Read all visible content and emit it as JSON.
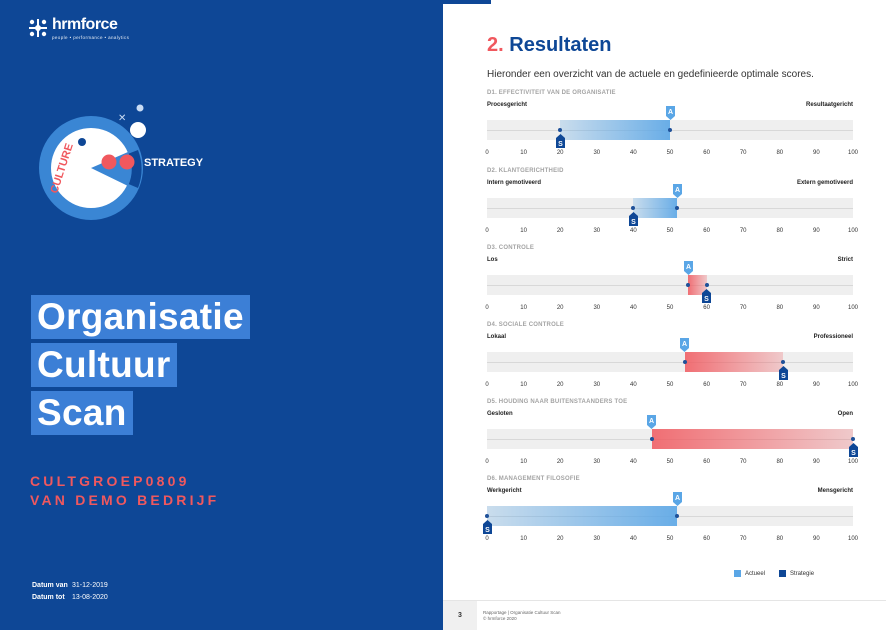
{
  "cover": {
    "brand": "hrmforce",
    "tagline": "people • performance • analytics",
    "emblem_word_left": "CULTURE",
    "emblem_word_right": "STRATEGY",
    "title_lines": [
      "Organisatie",
      "Cultuur",
      "Scan"
    ],
    "subtitle_lines": [
      "CULTGROEP0809",
      "VAN DEMO BEDRIJF"
    ],
    "date_from_label": "Datum van",
    "date_from": "31-12-2019",
    "date_to_label": "Datum tot",
    "date_to": "13-08-2020",
    "colors": {
      "background": "#0e4796",
      "title_box": "#3c7fd6",
      "accent": "#f0585e"
    }
  },
  "report": {
    "section_number": "2.",
    "section_title": "Resultaten",
    "intro": "Hieronder een overzicht van de actuele en gedefinieerde optimale scores.",
    "marker_actual": "A",
    "marker_strategy": "S",
    "ticks": [
      "0",
      "10",
      "20",
      "30",
      "40",
      "50",
      "60",
      "70",
      "80",
      "90",
      "100"
    ],
    "dimensions": [
      {
        "title": "D1. EFFECTIVITEIT VAN DE ORGANISATIE",
        "left_label": "Procesgericht",
        "right_label": "Resultaatgericht",
        "actual": 50,
        "strategy": 20,
        "color": "blue"
      },
      {
        "title": "D2. KLANTGERICHTHEID",
        "left_label": "Intern gemotiveerd",
        "right_label": "Extern gemotiveerd",
        "actual": 52,
        "strategy": 40,
        "color": "blue"
      },
      {
        "title": "D3. CONTROLE",
        "left_label": "Los",
        "right_label": "Strict",
        "actual": 55,
        "strategy": 60,
        "color": "red"
      },
      {
        "title": "D4. SOCIALE CONTROLE",
        "left_label": "Lokaal",
        "right_label": "Professioneel",
        "actual": 54,
        "strategy": 81,
        "color": "red"
      },
      {
        "title": "D5. HOUDING NAAR BUITENSTAANDERS TOE",
        "left_label": "Gesloten",
        "right_label": "Open",
        "actual": 45,
        "strategy": 100,
        "color": "red"
      },
      {
        "title": "D6. MANAGEMENT FILOSOFIE",
        "left_label": "Werkgericht",
        "right_label": "Mensgericht",
        "actual": 52,
        "strategy": 0,
        "color": "blue"
      }
    ],
    "legend_actual": "Actueel",
    "legend_strategy": "Strategie",
    "colors": {
      "actual": "#5aa6e6",
      "strategy": "#0e4796",
      "red": "#f0585e"
    }
  },
  "footer": {
    "page_number": "3",
    "line1": "Rapportage | Organisatie Cultuur Scan",
    "line2": "© hrmforce 2020"
  }
}
